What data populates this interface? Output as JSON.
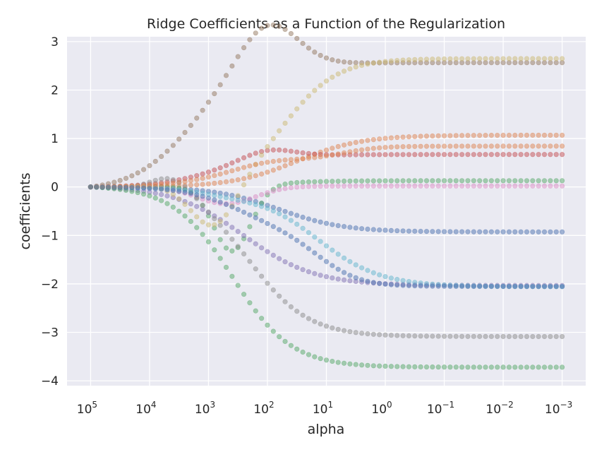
{
  "chart_data": {
    "type": "scatter",
    "title": "Ridge Coefficients as a Function of the Regularization",
    "xlabel": "alpha",
    "ylabel": "coefficients",
    "x_scale": "log",
    "x_reversed": true,
    "xlim_log10": [
      5.4,
      -3.4
    ],
    "ylim": [
      -4.1,
      3.1
    ],
    "x_ticks": [
      {
        "base": "10",
        "exp": "5"
      },
      {
        "base": "10",
        "exp": "4"
      },
      {
        "base": "10",
        "exp": "3"
      },
      {
        "base": "10",
        "exp": "2"
      },
      {
        "base": "10",
        "exp": "1"
      },
      {
        "base": "10",
        "exp": "0"
      },
      {
        "base": "10",
        "exp": "−1"
      },
      {
        "base": "10",
        "exp": "−2"
      },
      {
        "base": "10",
        "exp": "−3"
      }
    ],
    "y_ticks": [
      "−4",
      "−3",
      "−2",
      "−1",
      "0",
      "1",
      "2",
      "3"
    ],
    "grid": true,
    "background": "#eaeaf2",
    "grid_color": "#ffffff",
    "marker_alpha": 0.5,
    "log10_alpha_start": 5,
    "log10_alpha_end": -3,
    "points_per_series": 81,
    "series": [
      {
        "color": "#4c72b0",
        "final": -0.93,
        "mid": 1.8,
        "width": 0.55,
        "bump": 0
      },
      {
        "color": "#dd8452",
        "final": 1.07,
        "mid": 1.5,
        "width": 0.55,
        "bump": 0
      },
      {
        "color": "#55a868",
        "final": 0.13,
        "mid": 2.0,
        "width": 0.5,
        "bump": -1.35,
        "bump_center": 2.6,
        "bump_width": 0.45
      },
      {
        "color": "#c44e52",
        "final": 0.68,
        "mid": 2.9,
        "width": 0.5,
        "bump": 0.18,
        "bump_center": 2.0,
        "bump_width": 0.6
      },
      {
        "color": "#8172b3",
        "final": -2.06,
        "mid": 2.4,
        "width": 0.6,
        "bump": 0
      },
      {
        "color": "#937860",
        "final": 2.65,
        "mid": 3.3,
        "width": 0.5,
        "bump": 0.95,
        "bump_center": 2.0,
        "bump_width": 0.7
      },
      {
        "color": "#da8bc3",
        "final": 0.02,
        "mid": 2.0,
        "width": 0.45,
        "bump": -0.35,
        "bump_center": 2.7,
        "bump_width": 0.7
      },
      {
        "color": "#8c8c8c",
        "final": -3.1,
        "mid": 2.3,
        "width": 0.5,
        "bump": 0.35,
        "bump_center": 3.6,
        "bump_width": 0.5
      },
      {
        "color": "#ccb974",
        "final": 2.65,
        "mid": 1.7,
        "width": 0.45,
        "bump": -0.95,
        "bump_center": 2.9,
        "bump_width": 0.55
      },
      {
        "color": "#64b5cd",
        "final": -2.06,
        "mid": 1.2,
        "width": 0.55,
        "bump": -0.1,
        "bump_center": 2.6,
        "bump_width": 0.8
      },
      {
        "color": "#55a868",
        "final": -3.75,
        "mid": 2.6,
        "width": 0.5,
        "bump": 0
      },
      {
        "color": "#dd8452",
        "final": 0.85,
        "mid": 2.4,
        "width": 0.55,
        "bump": -0.15,
        "bump_center": 1.2,
        "bump_width": 0.8
      },
      {
        "color": "#4c72b0",
        "final": -2.06,
        "mid": 2.0,
        "width": 0.5,
        "bump": 0.4,
        "bump_center": 1.5,
        "bump_width": 0.8
      }
    ]
  }
}
